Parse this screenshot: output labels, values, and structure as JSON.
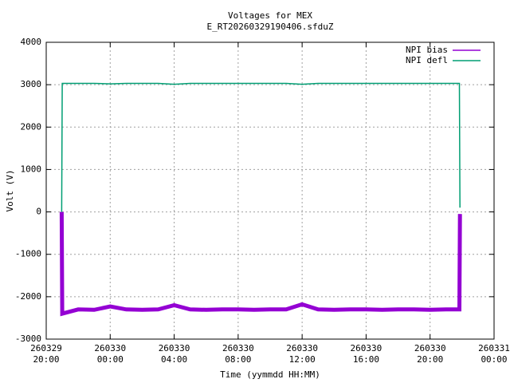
{
  "chart_data": {
    "type": "line",
    "title": "Voltages for MEX",
    "subtitle": "E_RT20260329190406.sfduZ",
    "x_label": "Time (yymmdd HH:MM)",
    "y_label": "Volt (V)",
    "x": [
      "260329 20:58",
      "260329 21:00",
      "260329 22:00",
      "260329 23:00",
      "260330 00:00",
      "260330 01:00",
      "260330 02:00",
      "260330 03:00",
      "260330 04:00",
      "260330 05:00",
      "260330 06:00",
      "260330 07:00",
      "260330 08:00",
      "260330 09:00",
      "260330 10:00",
      "260330 11:00",
      "260330 12:00",
      "260330 13:00",
      "260330 14:00",
      "260330 15:00",
      "260330 16:00",
      "260330 17:00",
      "260330 18:00",
      "260330 19:00",
      "260330 20:00",
      "260330 21:00",
      "260330 21:50",
      "260330 21:52"
    ],
    "series": [
      {
        "name": "NPI bias",
        "color": "#9400d3",
        "values": [
          0,
          -2400,
          -2300,
          -2310,
          -2230,
          -2300,
          -2310,
          -2300,
          -2200,
          -2300,
          -2310,
          -2300,
          -2300,
          -2310,
          -2300,
          -2300,
          -2180,
          -2300,
          -2310,
          -2300,
          -2300,
          -2310,
          -2300,
          -2300,
          -2310,
          -2300,
          -2300,
          -50
        ]
      },
      {
        "name": "NPI defl",
        "color": "#009e73",
        "values": [
          0,
          3030,
          3030,
          3030,
          3020,
          3030,
          3030,
          3030,
          3010,
          3030,
          3030,
          3030,
          3030,
          3030,
          3030,
          3030,
          3010,
          3030,
          3030,
          3030,
          3030,
          3030,
          3030,
          3030,
          3030,
          3030,
          3030,
          100
        ]
      }
    ],
    "xlim": [
      "260329 20:00",
      "260331 00:00"
    ],
    "xticks": [
      "260329 20:00",
      "260330 00:00",
      "260330 04:00",
      "260330 08:00",
      "260330 12:00",
      "260330 16:00",
      "260330 20:00",
      "260331 00:00"
    ],
    "ylim": [
      -3000,
      4000
    ],
    "yticks": [
      -3000,
      -2000,
      -1000,
      0,
      1000,
      2000,
      3000,
      4000
    ],
    "grid": true,
    "legend": "upper-right"
  }
}
